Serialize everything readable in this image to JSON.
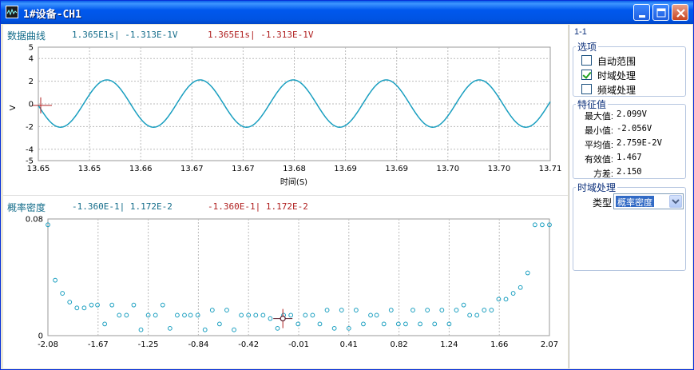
{
  "window": {
    "title": "1#设备-CH1",
    "minimize_icon": "minimize-icon",
    "maximize_icon": "maximize-icon",
    "close_icon": "close-icon"
  },
  "top_chart": {
    "title": "数据曲线",
    "cursor_blue": "1.365E1s| -1.313E-1V",
    "cursor_red": "1.365E1s| -1.313E-1V",
    "ylabel": "V",
    "xlabel": "时间(S)",
    "y_ticks": [
      "5",
      "4",
      "2",
      "0",
      "-2",
      "-4",
      "-5"
    ],
    "x_ticks": [
      "13.65",
      "13.65",
      "13.66",
      "13.67",
      "13.67",
      "13.68",
      "13.69",
      "13.69",
      "13.70",
      "13.70",
      "13.71"
    ]
  },
  "bottom_chart": {
    "title": "概率密度",
    "cursor_blue": "-1.360E-1| 1.172E-2",
    "cursor_red": "-1.360E-1| 1.172E-2",
    "y_ticks": [
      "0.08",
      "0"
    ],
    "x_ticks": [
      "-2.08",
      "-1.67",
      "-1.25",
      "-0.84",
      "-0.42",
      "-0.01",
      "0.41",
      "0.82",
      "1.24",
      "1.66",
      "2.07"
    ]
  },
  "chart_data": [
    {
      "type": "line",
      "title": "数据曲线",
      "xlabel": "时间(S)",
      "ylabel": "V",
      "xlim": [
        13.65,
        13.71
      ],
      "ylim": [
        -5,
        5
      ],
      "grid": true,
      "series": [
        {
          "color": "#1a9fc0",
          "amplitude": 2.08,
          "offset": 0.03,
          "cycles": 5.5,
          "start_value": -0.13
        }
      ],
      "cursor": {
        "x": 13.65,
        "y": -0.1313
      }
    },
    {
      "type": "scatter",
      "title": "概率密度",
      "xlim": [
        -2.08,
        2.07
      ],
      "ylim": [
        0,
        0.08
      ],
      "grid": true,
      "marker": "circle",
      "color": "#1a9fc0",
      "x": [
        -2.08,
        -2.02,
        -1.96,
        -1.9,
        -1.84,
        -1.78,
        -1.72,
        -1.67,
        -1.61,
        -1.55,
        -1.49,
        -1.43,
        -1.37,
        -1.31,
        -1.25,
        -1.19,
        -1.13,
        -1.07,
        -1.01,
        -0.95,
        -0.9,
        -0.84,
        -0.78,
        -0.72,
        -0.66,
        -0.6,
        -0.54,
        -0.48,
        -0.42,
        -0.36,
        -0.3,
        -0.24,
        -0.18,
        -0.13,
        -0.07,
        -0.01,
        0.05,
        0.11,
        0.17,
        0.23,
        0.29,
        0.35,
        0.41,
        0.47,
        0.53,
        0.59,
        0.64,
        0.7,
        0.76,
        0.82,
        0.88,
        0.94,
        1.0,
        1.06,
        1.12,
        1.18,
        1.24,
        1.3,
        1.36,
        1.41,
        1.47,
        1.53,
        1.59,
        1.65,
        1.71,
        1.77,
        1.83,
        1.89,
        1.95,
        2.01,
        2.07
      ],
      "y": [
        0.076,
        0.038,
        0.029,
        0.023,
        0.019,
        0.019,
        0.021,
        0.021,
        0.008,
        0.021,
        0.014,
        0.014,
        0.021,
        0.004,
        0.014,
        0.014,
        0.021,
        0.005,
        0.014,
        0.014,
        0.014,
        0.014,
        0.004,
        0.0175,
        0.008,
        0.0175,
        0.004,
        0.014,
        0.014,
        0.014,
        0.014,
        0.0117,
        0.005,
        0.014,
        0.014,
        0.008,
        0.014,
        0.014,
        0.008,
        0.0175,
        0.005,
        0.0175,
        0.005,
        0.0175,
        0.008,
        0.014,
        0.014,
        0.008,
        0.0175,
        0.008,
        0.008,
        0.0175,
        0.008,
        0.0175,
        0.008,
        0.0175,
        0.008,
        0.0175,
        0.021,
        0.014,
        0.014,
        0.0175,
        0.0175,
        0.025,
        0.025,
        0.029,
        0.033,
        0.043,
        0.076,
        0.076,
        0.076
      ],
      "cursor": {
        "x": -0.136,
        "y": 0.01172
      }
    }
  ],
  "side": {
    "channel_label": "1-1",
    "options_group": {
      "title": "选项",
      "items": [
        {
          "label": "自动范围",
          "checked": false
        },
        {
          "label": "时域处理",
          "checked": true
        },
        {
          "label": "频域处理",
          "checked": false
        }
      ]
    },
    "features_group": {
      "title": "特征值",
      "rows": [
        {
          "name": "最大值:",
          "value": "2.099V"
        },
        {
          "name": "最小值:",
          "value": "-2.056V"
        },
        {
          "name": "平均值:",
          "value": "2.759E-2V"
        },
        {
          "name": "有效值:",
          "value": "1.467"
        },
        {
          "name": "方差:",
          "value": "2.150"
        }
      ]
    },
    "process_group": {
      "title": "时域处理",
      "type_label": "类型",
      "type_value": "概率密度"
    }
  }
}
